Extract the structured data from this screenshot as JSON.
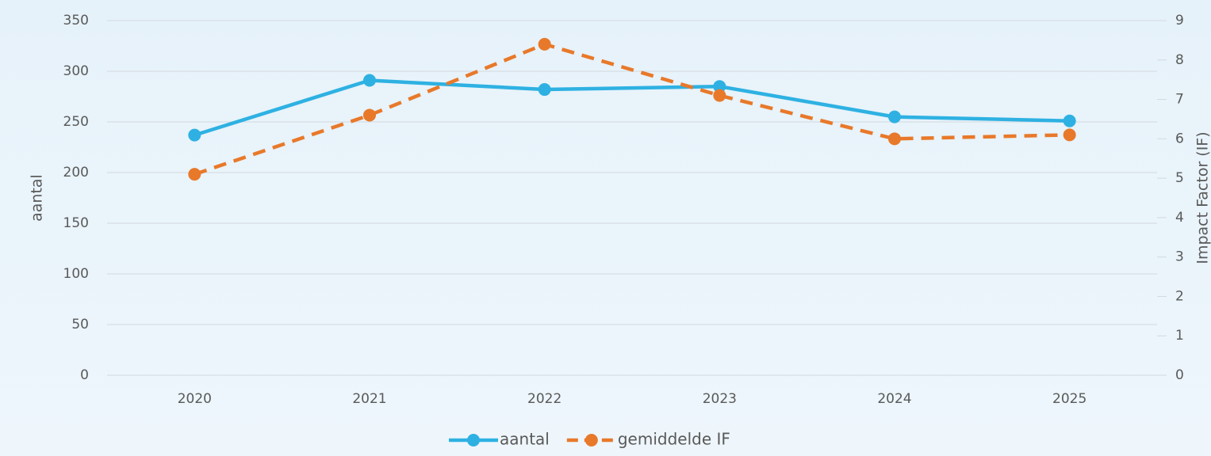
{
  "chart_data": {
    "type": "line",
    "categories": [
      "2020",
      "2021",
      "2022",
      "2023",
      "2024",
      "2025"
    ],
    "series": [
      {
        "name": "aantal",
        "color": "#2eb1e2",
        "values": [
          237,
          291,
          282,
          285,
          255,
          251
        ]
      },
      {
        "name": "gemiddelde IF",
        "color": "#e8792a",
        "axis": "y2",
        "dashed": true,
        "values": [
          5.1,
          6.6,
          8.4,
          7.1,
          6.0,
          6.1
        ]
      }
    ],
    "ylabel": "aantal",
    "y2label": "Impact Factor (IF)",
    "ylim": [
      0,
      350
    ],
    "yticks": [
      0,
      50,
      100,
      150,
      200,
      250,
      300,
      350
    ],
    "y2lim": [
      0,
      9
    ],
    "y2ticks": [
      0,
      1,
      2,
      3,
      4,
      5,
      6,
      7,
      8,
      9
    ],
    "grid": true,
    "legend": "bottom"
  }
}
